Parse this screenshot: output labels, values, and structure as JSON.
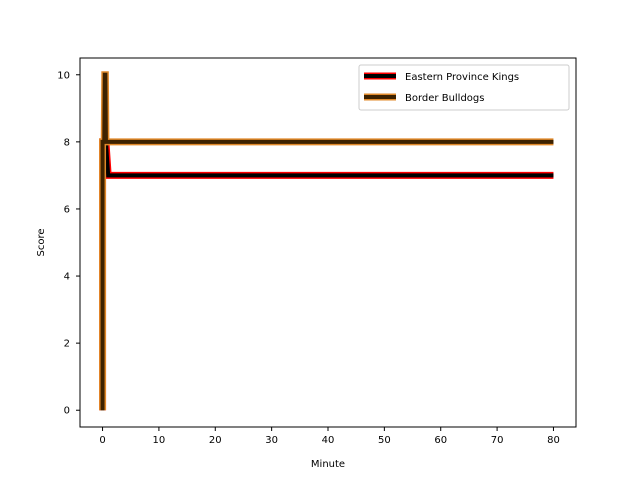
{
  "chart_data": {
    "type": "line",
    "title": "",
    "xlabel": "Minute",
    "ylabel": "Score",
    "xlim": [
      -4.0,
      84.0
    ],
    "ylim": [
      -0.5,
      10.5
    ],
    "xticks": [
      0,
      10,
      20,
      30,
      40,
      50,
      60,
      70,
      80
    ],
    "yticks": [
      0,
      2,
      4,
      6,
      8,
      10
    ],
    "grid": false,
    "legend_position": "top-right",
    "series": [
      {
        "name": "Eastern Province Kings",
        "color": "#000000",
        "edge_color": "#ff0000",
        "x": [
          0,
          0,
          0.3,
          0.6,
          1,
          80
        ],
        "y": [
          0,
          8,
          8,
          8,
          7,
          7
        ]
      },
      {
        "name": "Border Bulldogs",
        "color": "#3d2200",
        "edge_color": "#e0892a",
        "x": [
          0,
          0,
          0.3,
          0.4,
          0.5,
          0.6,
          1,
          80
        ],
        "y": [
          0,
          8,
          8,
          10,
          10,
          8,
          8,
          8
        ]
      }
    ]
  }
}
